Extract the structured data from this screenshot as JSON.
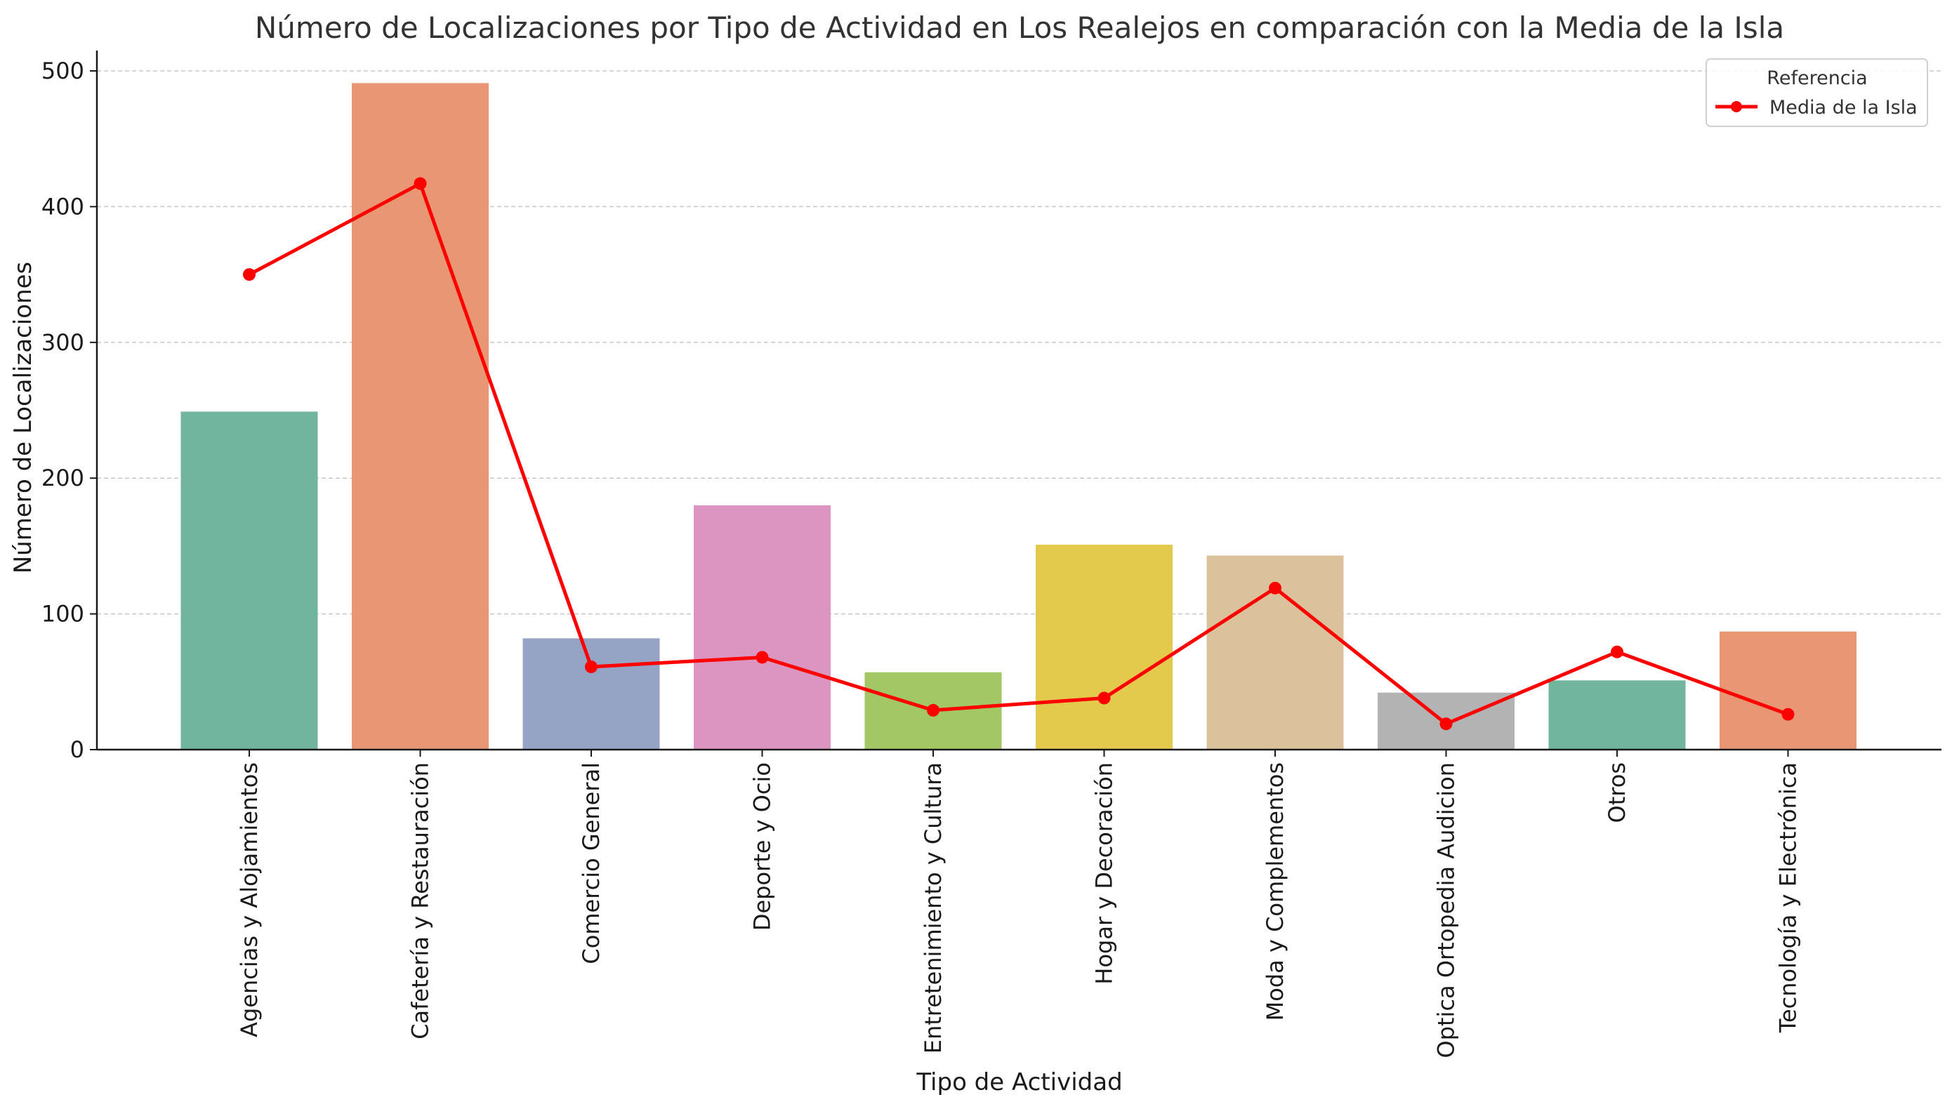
{
  "chart_data": {
    "type": "bar",
    "title": "Número de Localizaciones por Tipo de Actividad en Los Realejos en comparación con la Media de la Isla",
    "xlabel": "Tipo de Actividad",
    "ylabel": "Número de Localizaciones",
    "ylim": [
      0,
      515
    ],
    "yticks": [
      0,
      100,
      200,
      300,
      400,
      500
    ],
    "grid": "horizontal dashed",
    "categories": [
      "Agencias y Alojamientos",
      "Cafetería y Restauración",
      "Comercio General",
      "Deporte y Ocio",
      "Entretenimiento y Cultura",
      "Hogar y Decoración",
      "Moda y Complementos",
      "Optica Ortopedia Audicion",
      "Otros",
      "Tecnología y Electrónica"
    ],
    "values": [
      249,
      491,
      82,
      180,
      57,
      151,
      143,
      42,
      51,
      87
    ],
    "bar_colors": [
      "#72b59f",
      "#e89674",
      "#95a4c4",
      "#dc95c0",
      "#a2c764",
      "#e3c94c",
      "#dbc29c",
      "#b3b3b3",
      "#72b59f",
      "#e89674"
    ],
    "line_series": {
      "name": "Media de la Isla",
      "color": "#ff0000",
      "values": [
        350,
        417,
        61,
        68,
        29,
        38,
        119,
        19,
        72,
        26
      ]
    },
    "legend": {
      "title": "Referencia",
      "position": "top-right"
    }
  }
}
